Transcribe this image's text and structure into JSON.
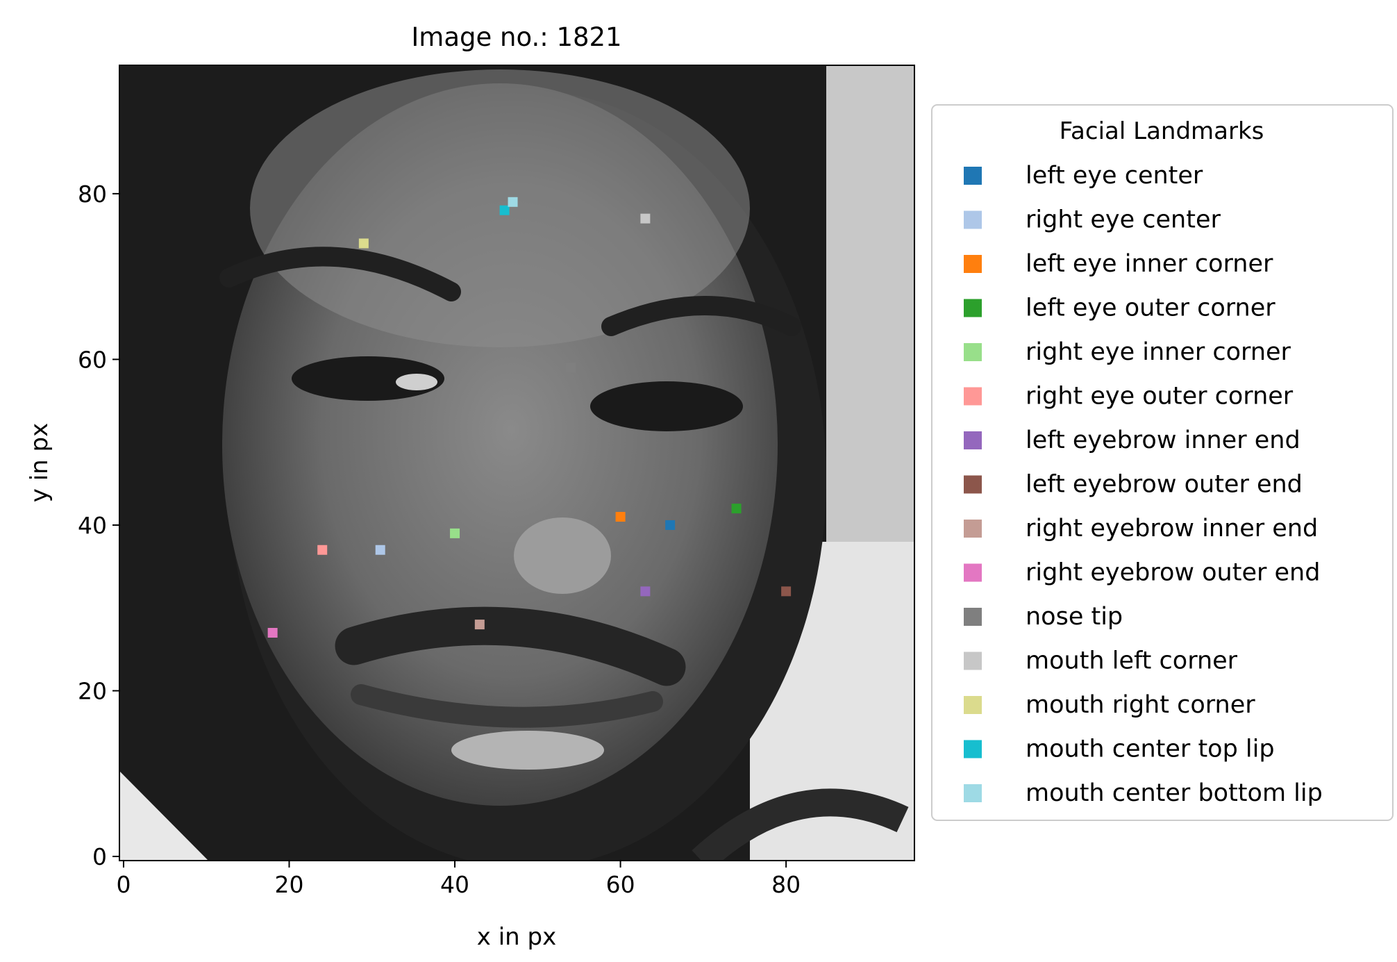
{
  "chart_data": {
    "type": "scatter",
    "title": "Image no.: 1821",
    "xlabel": "x in px",
    "ylabel": "y in px",
    "xlim": [
      -0.5,
      95.5
    ],
    "ylim": [
      95.5,
      -0.5
    ],
    "x_ticks": [
      0,
      20,
      40,
      60,
      80
    ],
    "y_ticks": [
      0,
      20,
      40,
      60,
      80
    ],
    "y_axis_inverted": true,
    "grid": false,
    "background": "96x96 grayscale face photograph",
    "legend": {
      "title": "Facial Landmarks",
      "placement": "outside-right"
    },
    "series": [
      {
        "name": "left eye center",
        "color": "#1f77b4",
        "x": 66,
        "y": 40
      },
      {
        "name": "right eye center",
        "color": "#aec7e8",
        "x": 31,
        "y": 37
      },
      {
        "name": "left eye inner corner",
        "color": "#ff7f0e",
        "x": 60,
        "y": 41
      },
      {
        "name": "left eye outer corner",
        "color": "#2ca02c",
        "x": 74,
        "y": 42
      },
      {
        "name": "right eye inner corner",
        "color": "#98df8a",
        "x": 40,
        "y": 39
      },
      {
        "name": "right eye outer corner",
        "color": "#ff9896",
        "x": 24,
        "y": 37
      },
      {
        "name": "left eyebrow inner end",
        "color": "#9467bd",
        "x": 63,
        "y": 32
      },
      {
        "name": "left eyebrow outer end",
        "color": "#8c564b",
        "x": 80,
        "y": 32
      },
      {
        "name": "right eyebrow inner end",
        "color": "#c49c94",
        "x": 43,
        "y": 28
      },
      {
        "name": "right eyebrow outer end",
        "color": "#e377c2",
        "x": 18,
        "y": 27
      },
      {
        "name": "nose tip",
        "color": "#7f7f7f",
        "x": 54,
        "y": 59
      },
      {
        "name": "mouth left corner",
        "color": "#c7c7c7",
        "x": 63,
        "y": 77
      },
      {
        "name": "mouth right corner",
        "color": "#dbdb8d",
        "x": 29,
        "y": 74
      },
      {
        "name": "mouth center top lip",
        "color": "#17becf",
        "x": 46,
        "y": 78
      },
      {
        "name": "mouth center bottom lip",
        "color": "#9edae5",
        "x": 47,
        "y": 79
      }
    ]
  }
}
